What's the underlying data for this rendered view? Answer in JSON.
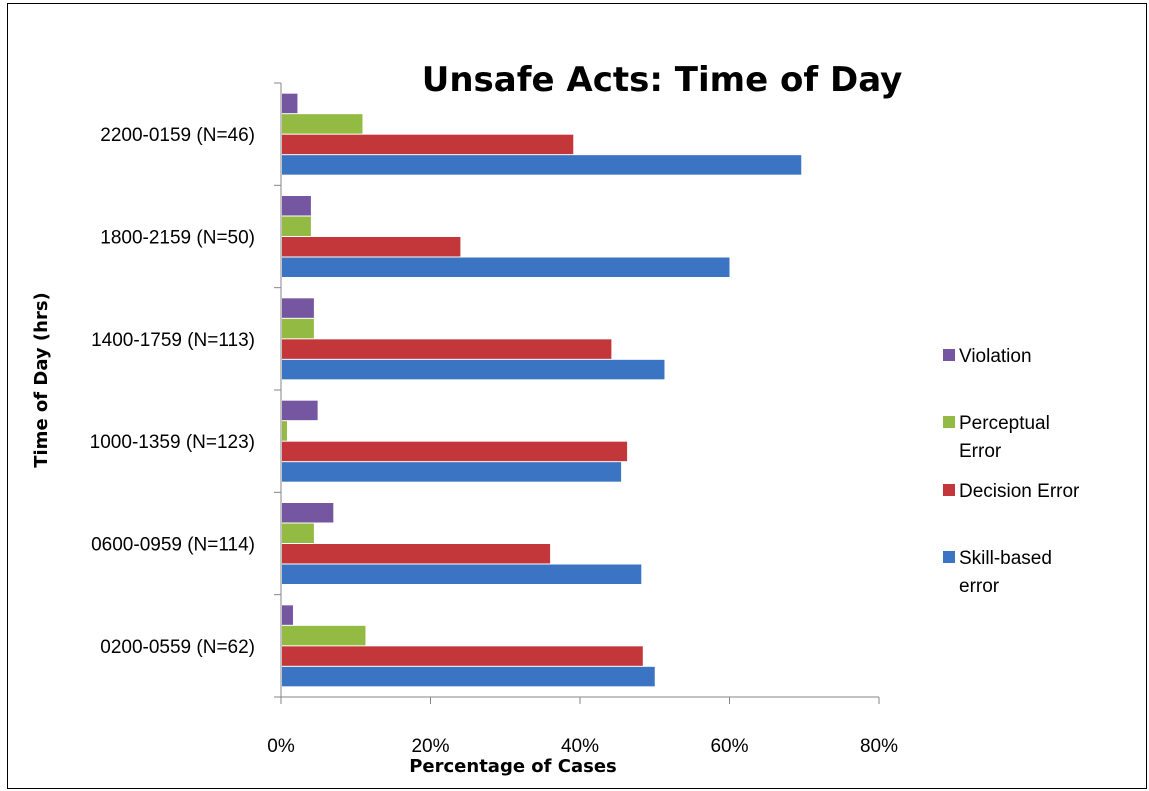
{
  "chart_data": {
    "type": "bar",
    "orientation": "horizontal",
    "title": "Unsafe Acts: Time of Day",
    "xlabel": "Percentage of Cases",
    "ylabel": "Time of Day (hrs)",
    "xlim": [
      0,
      80
    ],
    "x_ticks": [
      "0%",
      "20%",
      "40%",
      "60%",
      "80%"
    ],
    "categories": [
      "0200-0559 (N=62)",
      "0600-0959 (N=114)",
      "1000-1359 (N=123)",
      "1400-1759 (N=113)",
      "1800-2159 (N=50)",
      "2200-0159 (N=46)"
    ],
    "series": [
      {
        "name": "Skill-based error",
        "color": "#3a74c2",
        "values": [
          50,
          48.2,
          45.5,
          51.3,
          60,
          69.6
        ]
      },
      {
        "name": "Decision Error",
        "color": "#c3373b",
        "values": [
          48.4,
          36,
          46.3,
          44.2,
          24,
          39.1
        ]
      },
      {
        "name": "Perceptual Error",
        "color": "#93bb43",
        "values": [
          11.3,
          4.4,
          0.8,
          4.4,
          4,
          10.9
        ]
      },
      {
        "name": "Violation",
        "color": "#7556a0",
        "values": [
          1.6,
          7,
          4.9,
          4.4,
          4,
          2.2
        ]
      }
    ],
    "legend": {
      "position": "right",
      "entries": [
        {
          "lines": [
            "Violation"
          ],
          "color": "#7556a0"
        },
        {
          "lines": [
            "Perceptual",
            "Error"
          ],
          "color": "#93bb43"
        },
        {
          "lines": [
            "Decision Error"
          ],
          "color": "#c3373b"
        },
        {
          "lines": [
            "Skill-based",
            "error"
          ],
          "color": "#3a74c2"
        }
      ]
    },
    "grid": false
  }
}
